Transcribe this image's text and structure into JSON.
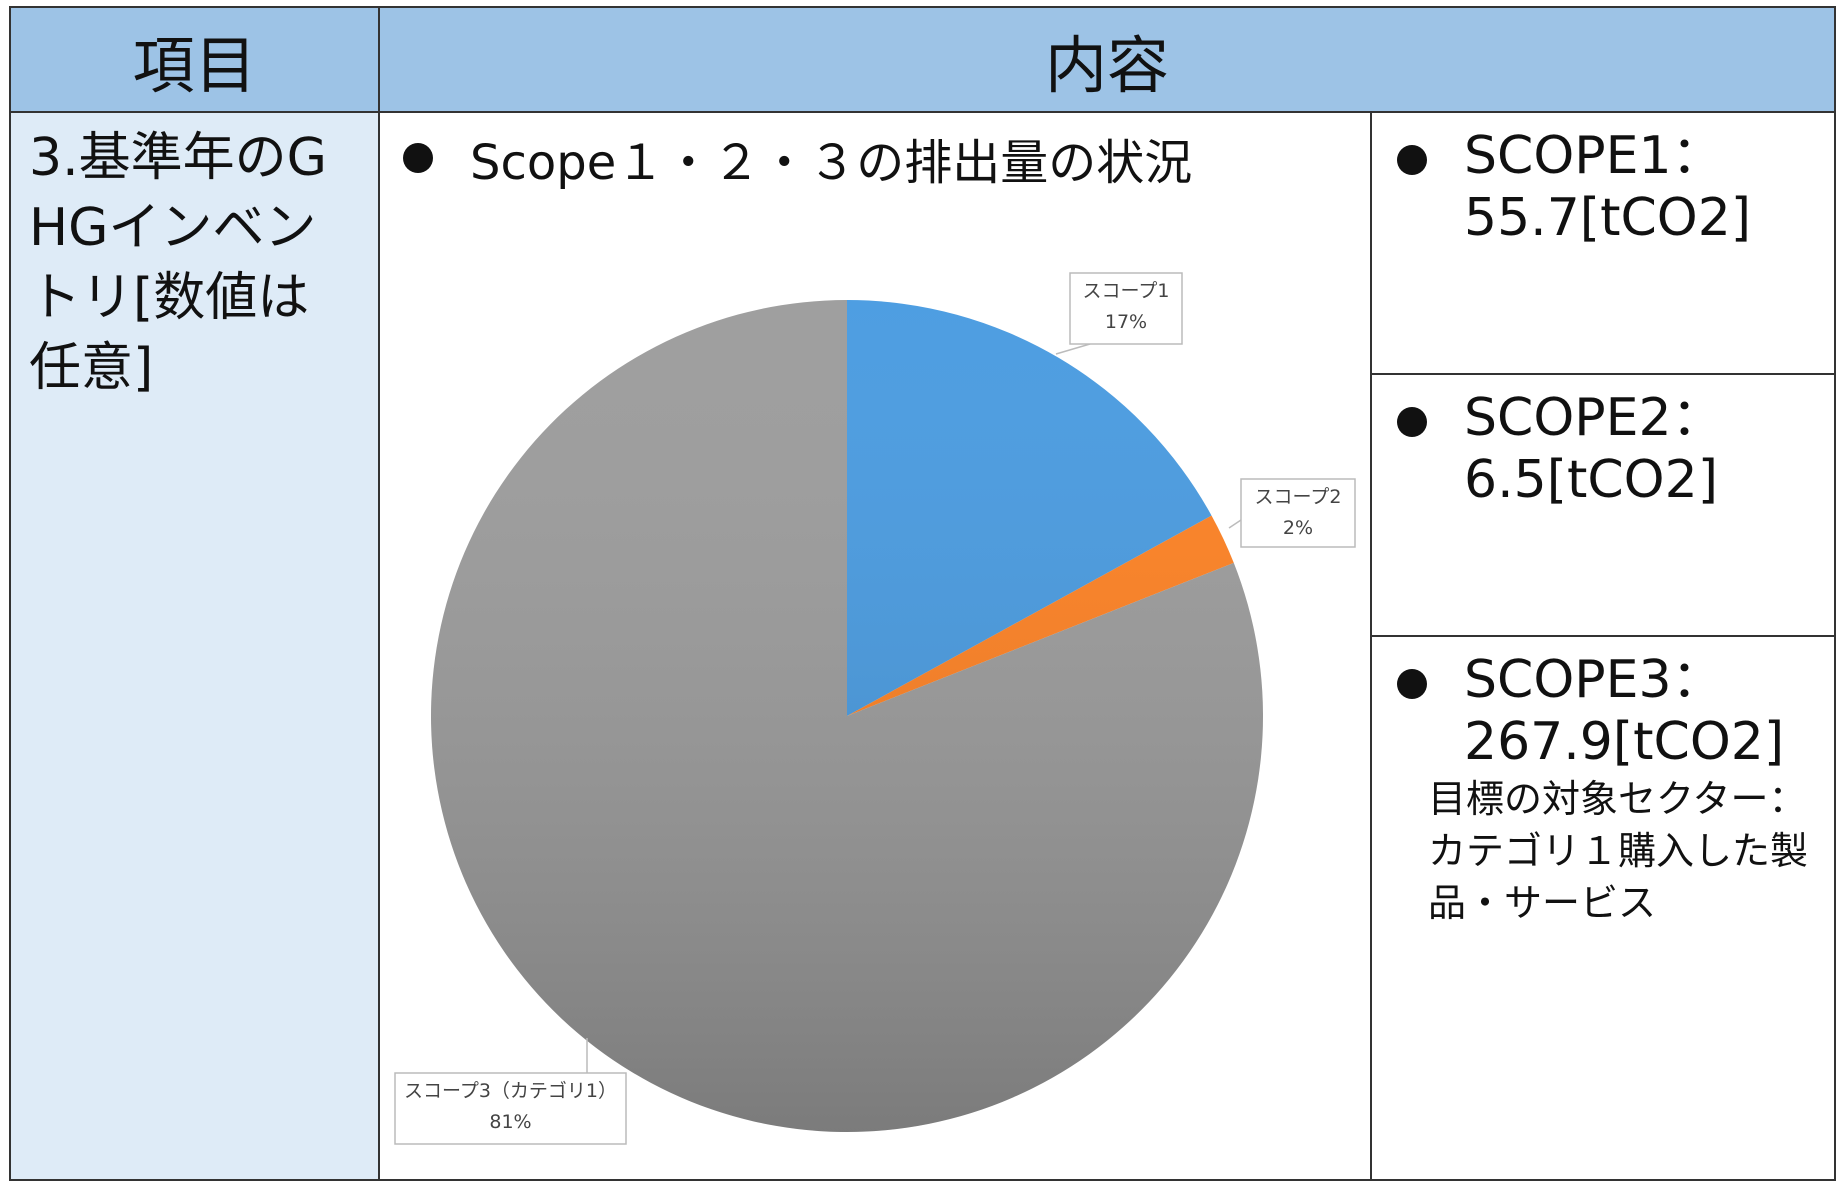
{
  "header": {
    "col1": "項目",
    "col2": "内容"
  },
  "row": {
    "item": "3.基準年のGHGインベントリ[数値は任意]",
    "chart_heading": "Scope１・２・３の排出量の状況",
    "scopes": [
      {
        "label": "SCOPE1：",
        "value": "55.7[tCO2]"
      },
      {
        "label": "SCOPE2：",
        "value": "6.5[tCO2]"
      },
      {
        "label": "SCOPE3：",
        "value": "267.9[tCO2]"
      }
    ],
    "note": "目標の対象セクター：カテゴリ１購入した製品・サービス"
  },
  "chart_data": {
    "type": "pie",
    "categories": [
      "スコープ1",
      "スコープ2",
      "スコープ3（カテゴリ1）"
    ],
    "values": [
      17,
      2,
      81
    ],
    "value_labels": [
      "17%",
      "2%",
      "81%"
    ],
    "colors": [
      "#4599e0",
      "#ff7f1e",
      "#9a9a9a"
    ]
  }
}
